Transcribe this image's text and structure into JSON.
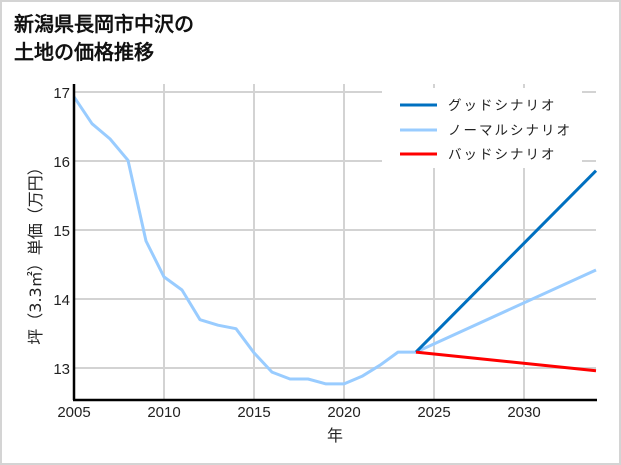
{
  "title": {
    "line1": "新潟県長岡市中沢の",
    "line2": "土地の価格推移"
  },
  "chart_data": {
    "type": "line",
    "title": "新潟県長岡市中沢の土地の価格推移",
    "xlabel": "年",
    "ylabel": "坪（3.3㎡）単価（万円）",
    "xlim": [
      2005,
      2034
    ],
    "ylim": [
      12.55,
      17.1
    ],
    "x_ticks": [
      "2005",
      "2010",
      "2015",
      "2020",
      "2025",
      "2030"
    ],
    "y_ticks": [
      "13",
      "14",
      "15",
      "16",
      "17"
    ],
    "grid": true,
    "legend_position": "upper right",
    "series": [
      {
        "name": "グッドシナリオ",
        "color": "#0070c0",
        "x": [
          2024,
          2034
        ],
        "values": [
          13.23,
          15.86
        ]
      },
      {
        "name": "ノーマルシナリオ",
        "color": "#99ccff",
        "x": [
          2005,
          2006,
          2007,
          2008,
          2009,
          2010,
          2011,
          2012,
          2013,
          2014,
          2015,
          2016,
          2017,
          2018,
          2019,
          2020,
          2021,
          2022,
          2023,
          2024,
          2034
        ],
        "values": [
          16.93,
          16.54,
          16.32,
          16.01,
          14.84,
          14.32,
          14.13,
          13.7,
          13.62,
          13.57,
          13.22,
          12.94,
          12.84,
          12.84,
          12.77,
          12.77,
          12.88,
          13.04,
          13.23,
          13.23,
          14.42
        ]
      },
      {
        "name": "バッドシナリオ",
        "color": "#ff0000",
        "x": [
          2024,
          2034
        ],
        "values": [
          13.23,
          12.96
        ]
      }
    ]
  },
  "legend": {
    "good": "グッドシナリオ",
    "normal": "ノーマルシナリオ",
    "bad": "バッドシナリオ"
  },
  "axes": {
    "x_label": "年",
    "y_label": "坪（3.3㎡）単価（万円）"
  }
}
